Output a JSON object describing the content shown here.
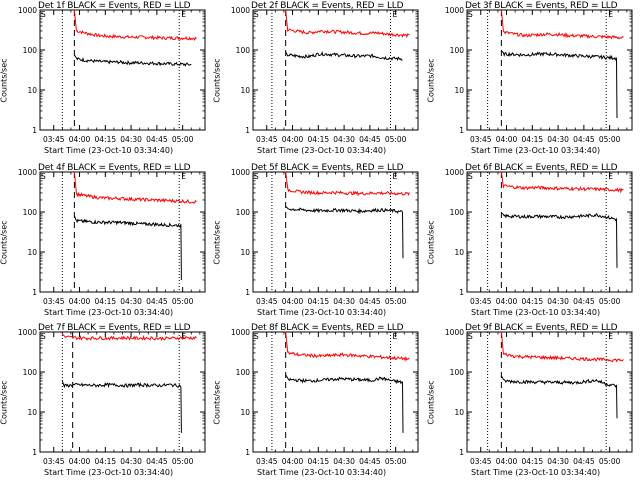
{
  "chart_data": [
    {
      "type": "line",
      "title": "Det 1f BLACK = Events, RED = LLD",
      "ylabel": "Counts/sec",
      "xlabel": "Start Time (23-Oct-10 03:34:40)",
      "x_ticks": [
        "03:45",
        "04:00",
        "04:15",
        "04:30",
        "04:45",
        "05:00"
      ],
      "y_ticks": [
        "1",
        "10",
        "100",
        "1000"
      ],
      "y_scale": "log",
      "ylim": [
        1,
        1000
      ],
      "series": [
        {
          "color": "#ff0000",
          "start": "03:57",
          "end": "05:08",
          "peak": 1000,
          "values": [
            300,
            260,
            230,
            220,
            215,
            210,
            210,
            205,
            200,
            200,
            200,
            195
          ]
        },
        {
          "color": "#000000",
          "start": "03:57",
          "end": "05:05",
          "peak": 75,
          "values": [
            60,
            55,
            52,
            50,
            50,
            48,
            48,
            47,
            46,
            45,
            44,
            43
          ],
          "drop": null
        }
      ],
      "vlines": {
        "dotted": [
          "03:50",
          "04:58"
        ],
        "dashed": "03:57"
      },
      "markers": [
        "S",
        "E"
      ]
    },
    {
      "type": "line",
      "title": "Det 2f BLACK = Events, RED = LLD",
      "ylabel": "Counts/sec",
      "xlabel": "Start Time (23-Oct-10 03:34:40)",
      "x_ticks": [
        "03:45",
        "04:00",
        "04:15",
        "04:30",
        "04:45",
        "05:00"
      ],
      "y_ticks": [
        "1",
        "10",
        "100",
        "1000"
      ],
      "y_scale": "log",
      "ylim": [
        1,
        1000
      ],
      "series": [
        {
          "color": "#ff0000",
          "start": "03:56",
          "end": "05:08",
          "peak": 1000,
          "values": [
            320,
            290,
            270,
            300,
            290,
            280,
            270,
            260,
            270,
            250,
            240,
            230
          ]
        },
        {
          "color": "#000000",
          "start": "03:56",
          "end": "05:04",
          "peak": 90,
          "values": [
            75,
            70,
            68,
            80,
            78,
            75,
            72,
            70,
            72,
            65,
            62,
            60
          ],
          "drop": null
        }
      ],
      "vlines": {
        "dotted": [
          "03:48",
          "04:57"
        ],
        "dashed": "03:56"
      },
      "markers": [
        "S",
        "E"
      ]
    },
    {
      "type": "line",
      "title": "Det 3f BLACK = Events, RED = LLD",
      "ylabel": "Counts/sec",
      "xlabel": "Start Time (23-Oct-10 03:34:40)",
      "x_ticks": [
        "03:45",
        "04:00",
        "04:15",
        "04:30",
        "04:45",
        "05:00"
      ],
      "y_ticks": [
        "1",
        "10",
        "100",
        "1000"
      ],
      "y_scale": "log",
      "ylim": [
        1,
        1000
      ],
      "series": [
        {
          "color": "#ff0000",
          "start": "03:57",
          "end": "05:08",
          "peak": 1000,
          "values": [
            280,
            250,
            230,
            240,
            250,
            245,
            230,
            225,
            220,
            215,
            210,
            200
          ]
        },
        {
          "color": "#000000",
          "start": "03:57",
          "end": "05:04",
          "peak": 95,
          "values": [
            80,
            78,
            75,
            78,
            80,
            78,
            75,
            72,
            70,
            68,
            65,
            63
          ],
          "drop": 2
        }
      ],
      "vlines": {
        "dotted": [
          "03:49",
          "04:58"
        ],
        "dashed": "03:57"
      },
      "markers": [
        "S",
        "E"
      ]
    },
    {
      "type": "line",
      "title": "Det 4f BLACK = Events, RED = LLD",
      "ylabel": "Counts/sec",
      "xlabel": "Start Time (23-Oct-10 03:34:40)",
      "x_ticks": [
        "03:45",
        "04:00",
        "04:15",
        "04:30",
        "04:45",
        "05:00"
      ],
      "y_ticks": [
        "1",
        "10",
        "100",
        "1000"
      ],
      "y_scale": "log",
      "ylim": [
        1,
        1000
      ],
      "series": [
        {
          "color": "#ff0000",
          "start": "03:57",
          "end": "05:08",
          "peak": 1000,
          "values": [
            280,
            250,
            230,
            220,
            220,
            210,
            205,
            200,
            195,
            190,
            185,
            180
          ]
        },
        {
          "color": "#000000",
          "start": "03:57",
          "end": "04:59",
          "peak": 80,
          "values": [
            60,
            58,
            56,
            55,
            55,
            54,
            52,
            50,
            50,
            48,
            47,
            46
          ],
          "drop": 2
        }
      ],
      "vlines": {
        "dotted": [
          "03:50",
          "04:58"
        ],
        "dashed": "03:57"
      },
      "markers": [
        "S",
        "E"
      ]
    },
    {
      "type": "line",
      "title": "Det 5f BLACK = Events, RED = LLD",
      "ylabel": "Counts/sec",
      "xlabel": "Start Time (23-Oct-10 03:34:40)",
      "x_ticks": [
        "03:45",
        "04:00",
        "04:15",
        "04:30",
        "04:45",
        "05:00"
      ],
      "y_ticks": [
        "1",
        "10",
        "100",
        "1000"
      ],
      "y_scale": "log",
      "ylim": [
        1,
        1000
      ],
      "series": [
        {
          "color": "#ff0000",
          "start": "03:56",
          "end": "05:08",
          "peak": 1000,
          "values": [
            360,
            320,
            310,
            300,
            310,
            300,
            295,
            290,
            300,
            295,
            290,
            285
          ]
        },
        {
          "color": "#000000",
          "start": "03:56",
          "end": "05:04",
          "peak": 140,
          "values": [
            120,
            115,
            110,
            108,
            110,
            112,
            108,
            105,
            110,
            112,
            108,
            100
          ],
          "drop": 7
        }
      ],
      "vlines": {
        "dotted": [
          "03:48",
          "04:57"
        ],
        "dashed": "03:56"
      },
      "markers": [
        "S",
        "E"
      ]
    },
    {
      "type": "line",
      "title": "Det 6f BLACK = Events, RED = LLD",
      "ylabel": "Counts/sec",
      "xlabel": "Start Time (23-Oct-10 03:34:40)",
      "x_ticks": [
        "03:45",
        "04:00",
        "04:15",
        "04:30",
        "04:45",
        "05:00"
      ],
      "y_ticks": [
        "1",
        "10",
        "100",
        "1000"
      ],
      "y_scale": "log",
      "ylim": [
        1,
        1000
      ],
      "series": [
        {
          "color": "#ff0000",
          "start": "03:57",
          "end": "05:08",
          "peak": 1000,
          "values": [
            450,
            420,
            400,
            410,
            400,
            390,
            385,
            380,
            375,
            370,
            360,
            350
          ]
        },
        {
          "color": "#000000",
          "start": "03:57",
          "end": "05:04",
          "peak": 95,
          "values": [
            80,
            78,
            76,
            78,
            77,
            76,
            75,
            78,
            80,
            85,
            75,
            65
          ],
          "drop": 4
        }
      ],
      "vlines": {
        "dotted": [
          "03:49",
          "04:58"
        ],
        "dashed": "03:57"
      },
      "markers": [
        "S",
        "E"
      ]
    },
    {
      "type": "line",
      "title": "Det 7f BLACK = Events, RED = LLD",
      "ylabel": "Counts/sec",
      "xlabel": "Start Time (23-Oct-10 03:34:40)",
      "x_ticks": [
        "03:45",
        "04:00",
        "04:15",
        "04:30",
        "04:45",
        "05:00"
      ],
      "y_ticks": [
        "1",
        "10",
        "100",
        "1000"
      ],
      "y_scale": "log",
      "ylim": [
        1,
        1000
      ],
      "series": [
        {
          "color": "#ff0000",
          "start": "03:50",
          "end": "05:08",
          "peak": 900,
          "values": [
            750,
            720,
            700,
            710,
            700,
            720,
            700,
            710,
            690,
            700,
            720,
            710
          ]
        },
        {
          "color": "#000000",
          "start": "03:50",
          "end": "04:59",
          "peak": 60,
          "values": [
            45,
            48,
            47,
            46,
            48,
            47,
            46,
            48,
            47,
            46,
            48,
            45
          ],
          "drop": 3
        }
      ],
      "vlines": {
        "dotted": [
          "03:50",
          "04:58"
        ],
        "dashed": "03:56"
      },
      "markers": [
        "S",
        "E"
      ]
    },
    {
      "type": "line",
      "title": "Det 8f BLACK = Events, RED = LLD",
      "ylabel": "Counts/sec",
      "xlabel": "Start Time (23-Oct-10 03:34:40)",
      "x_ticks": [
        "03:45",
        "04:00",
        "04:15",
        "04:30",
        "04:45",
        "05:00"
      ],
      "y_ticks": [
        "1",
        "10",
        "100",
        "1000"
      ],
      "y_scale": "log",
      "ylim": [
        1,
        1000
      ],
      "series": [
        {
          "color": "#ff0000",
          "start": "03:56",
          "end": "05:08",
          "peak": 1000,
          "values": [
            300,
            270,
            260,
            250,
            260,
            270,
            260,
            250,
            240,
            230,
            220,
            210
          ]
        },
        {
          "color": "#000000",
          "start": "03:56",
          "end": "05:04",
          "peak": 85,
          "values": [
            65,
            62,
            60,
            62,
            65,
            68,
            66,
            64,
            62,
            70,
            60,
            55
          ],
          "drop": 3
        }
      ],
      "vlines": {
        "dotted": [
          "03:48",
          "04:57"
        ],
        "dashed": "03:56"
      },
      "markers": [
        "S",
        "E"
      ]
    },
    {
      "type": "line",
      "title": "Det 9f BLACK = Events, RED = LLD",
      "ylabel": "Counts/sec",
      "xlabel": "Start Time (23-Oct-10 03:34:40)",
      "x_ticks": [
        "03:45",
        "04:00",
        "04:15",
        "04:30",
        "04:45",
        "05:00"
      ],
      "y_ticks": [
        "1",
        "10",
        "100",
        "1000"
      ],
      "y_scale": "log",
      "ylim": [
        1,
        1000
      ],
      "series": [
        {
          "color": "#ff0000",
          "start": "03:57",
          "end": "05:08",
          "peak": 1000,
          "values": [
            280,
            250,
            240,
            235,
            230,
            225,
            220,
            215,
            210,
            205,
            200,
            200
          ]
        },
        {
          "color": "#000000",
          "start": "03:57",
          "end": "05:04",
          "peak": 80,
          "values": [
            60,
            58,
            57,
            56,
            56,
            55,
            55,
            54,
            58,
            62,
            50,
            45
          ],
          "drop": 7
        }
      ],
      "vlines": {
        "dotted": [
          "03:49",
          "04:58"
        ],
        "dashed": "03:57"
      },
      "markers": [
        "S",
        "E"
      ]
    }
  ]
}
